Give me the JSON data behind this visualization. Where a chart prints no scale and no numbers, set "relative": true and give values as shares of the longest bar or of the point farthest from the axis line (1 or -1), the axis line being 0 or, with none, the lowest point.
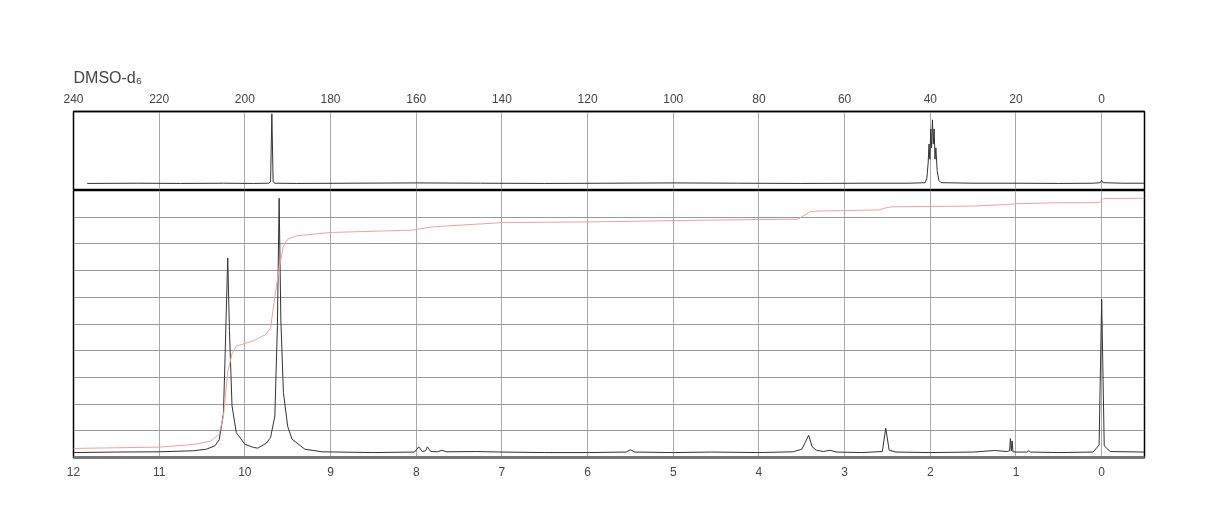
{
  "chart_data": [
    {
      "type": "line",
      "title": "DMSO-d₆",
      "relative": true,
      "xlim": [
        240,
        -10
      ],
      "xticks": [
        240,
        220,
        200,
        180,
        160,
        140,
        120,
        100,
        80,
        60,
        40,
        20,
        0
      ],
      "grid": "x",
      "series": [
        {
          "color": "#333333",
          "x": [
            236.8,
            225,
            215,
            205,
            198,
            194.4,
            194.0,
            193.7,
            193.4,
            193.0,
            188,
            175,
            160,
            145,
            130,
            115,
            100,
            85,
            70,
            55,
            45,
            41.2,
            40.8,
            40.5,
            40.3,
            40.1,
            39.9,
            39.7,
            39.5,
            39.3,
            39.1,
            38.9,
            38.7,
            38.4,
            38.0,
            37.5,
            30,
            20,
            10,
            2,
            0.3,
            0,
            -0.3,
            -5,
            -10
          ],
          "values": [
            0.08,
            0.083,
            0.08,
            0.083,
            0.08,
            0.083,
            0.1,
            1.0,
            0.1,
            0.083,
            0.08,
            0.083,
            0.087,
            0.083,
            0.08,
            0.083,
            0.087,
            0.083,
            0.08,
            0.083,
            0.083,
            0.09,
            0.15,
            0.35,
            0.6,
            0.4,
            0.8,
            0.55,
            0.92,
            0.6,
            0.8,
            0.4,
            0.55,
            0.25,
            0.12,
            0.09,
            0.083,
            0.083,
            0.08,
            0.083,
            0.09,
            0.12,
            0.09,
            0.083,
            0.083
          ]
        }
      ]
    },
    {
      "type": "line",
      "relative": true,
      "xlim": [
        12,
        -0.5
      ],
      "xticks": [
        12,
        11,
        10,
        9,
        8,
        7,
        6,
        5,
        4,
        3,
        2,
        1,
        0
      ],
      "grid": true,
      "series": [
        {
          "color": "#333333",
          "x": [
            12,
            11.5,
            11,
            10.6,
            10.45,
            10.35,
            10.3,
            10.25,
            10.23,
            10.2,
            10.18,
            10.15,
            10.1,
            10.0,
            9.9,
            9.85,
            9.75,
            9.7,
            9.65,
            9.62,
            9.6,
            9.58,
            9.55,
            9.5,
            9.45,
            9.3,
            9.1,
            8.5,
            8.02,
            7.97,
            7.93,
            7.89,
            7.87,
            7.83,
            7.75,
            7.7,
            7.65,
            7.3,
            7.0,
            6.5,
            6.0,
            5.55,
            5.5,
            5.45,
            5.0,
            4.55,
            4.0,
            3.6,
            3.5,
            3.46,
            3.42,
            3.38,
            3.33,
            3.25,
            3.17,
            3.1,
            2.8,
            2.56,
            2.52,
            2.48,
            2.4,
            2.0,
            1.5,
            1.25,
            1.1,
            1.075,
            1.065,
            1.055,
            1.045,
            1.035,
            1.0,
            0.87,
            0.85,
            0.83,
            0.5,
            0.1,
            0.03,
            0.0,
            -0.03,
            -0.1,
            -0.5
          ],
          "values": [
            0.019,
            0.021,
            0.022,
            0.026,
            0.032,
            0.045,
            0.068,
            0.17,
            0.4,
            0.77,
            0.49,
            0.2,
            0.096,
            0.051,
            0.039,
            0.036,
            0.055,
            0.077,
            0.16,
            0.51,
            1.0,
            0.53,
            0.25,
            0.12,
            0.071,
            0.032,
            0.022,
            0.019,
            0.021,
            0.041,
            0.023,
            0.026,
            0.041,
            0.023,
            0.022,
            0.028,
            0.022,
            0.023,
            0.021,
            0.019,
            0.019,
            0.021,
            0.03,
            0.021,
            0.019,
            0.021,
            0.019,
            0.022,
            0.032,
            0.058,
            0.086,
            0.042,
            0.028,
            0.023,
            0.028,
            0.021,
            0.019,
            0.023,
            0.113,
            0.028,
            0.021,
            0.019,
            0.021,
            0.027,
            0.023,
            0.026,
            0.073,
            0.026,
            0.064,
            0.022,
            0.021,
            0.021,
            0.026,
            0.021,
            0.019,
            0.021,
            0.048,
            0.61,
            0.045,
            0.023,
            0.021
          ]
        },
        {
          "color": "#f4a0a0",
          "x": [
            12,
            11,
            10.6,
            10.4,
            10.3,
            10.25,
            10.2,
            10.15,
            10.1,
            10.0,
            9.9,
            9.75,
            9.7,
            9.65,
            9.6,
            9.55,
            9.5,
            9.4,
            9.0,
            8.05,
            7.95,
            7.8,
            7.0,
            6.0,
            5.5,
            5.0,
            4.0,
            3.55,
            3.45,
            3.4,
            3.3,
            2.6,
            2.52,
            2.45,
            1.5,
            1.1,
            1.0,
            0.5,
            0.03,
            -0.02,
            -0.5
          ],
          "values": [
            0.035,
            0.04,
            0.05,
            0.063,
            0.09,
            0.16,
            0.33,
            0.4,
            0.43,
            0.44,
            0.45,
            0.476,
            0.5,
            0.62,
            0.73,
            0.816,
            0.842,
            0.855,
            0.868,
            0.877,
            0.883,
            0.89,
            0.906,
            0.909,
            0.911,
            0.914,
            0.918,
            0.919,
            0.938,
            0.949,
            0.951,
            0.955,
            0.963,
            0.967,
            0.97,
            0.976,
            0.979,
            0.983,
            0.983,
            0.999,
            1.0
          ]
        }
      ]
    }
  ]
}
